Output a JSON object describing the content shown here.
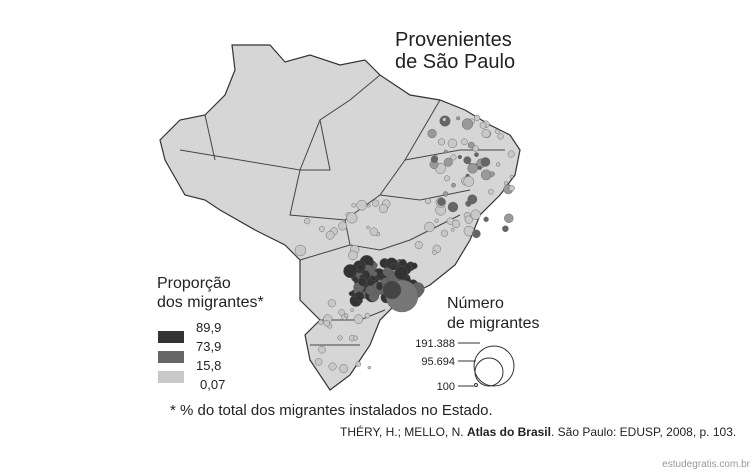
{
  "title": [
    "Provenientes",
    "de São Paulo"
  ],
  "legend_proportion": {
    "title": [
      "Proporção",
      "dos migrantes*"
    ],
    "classes": [
      "89,9",
      "73,9",
      "15,8",
      "0,07"
    ]
  },
  "legend_number": {
    "title": [
      "Número",
      "de migrantes"
    ],
    "values": [
      "191.388",
      "95.694",
      "100"
    ]
  },
  "footnote": "* % do total dos migrantes instalados no Estado.",
  "source": {
    "authors": "THÉRY, H.; MELLO, N.",
    "book": "Atlas do Brasil",
    "rest": ". São Paulo: EDUSP, 2008, p. 103."
  },
  "watermark": "estudegratis.com.br"
}
